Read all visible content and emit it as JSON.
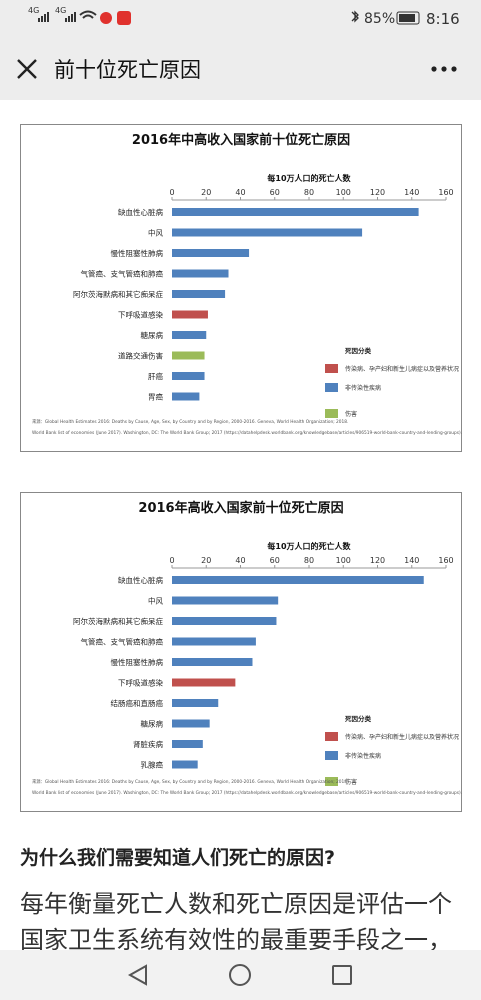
{
  "status_bar": {
    "network_1": "4G",
    "network_2": "4G",
    "battery": "85%",
    "time": "8:16"
  },
  "header": {
    "title": "前十位死亡原因"
  },
  "chart_data": [
    {
      "type": "bar",
      "orientation": "horizontal",
      "title": "2016年中高收入国家前十位死亡原因",
      "x_label": "每10万人口的死亡人数",
      "categories": [
        "缺血性心脏病",
        "中风",
        "慢性阻塞性肺病",
        "气管癌、支气管癌和肺癌",
        "阿尔茨海默病和其它痴呆症",
        "下呼吸道感染",
        "糖尿病",
        "道路交通伤害",
        "肝癌",
        "胃癌"
      ],
      "series": [
        {
          "name": "传染病、孕产妇和新生儿病症以及营养状况",
          "color": "#c0504d",
          "values": [
            null,
            null,
            null,
            null,
            null,
            21,
            null,
            null,
            null,
            null
          ]
        },
        {
          "name": "非传染性疾病",
          "color": "#4f81bd",
          "values": [
            144,
            111,
            45,
            33,
            31,
            null,
            20,
            null,
            19,
            16
          ]
        },
        {
          "name": "伤害",
          "color": "#9bbb59",
          "values": [
            null,
            null,
            null,
            null,
            null,
            null,
            null,
            19,
            null,
            null
          ]
        }
      ],
      "xlim": [
        0,
        160
      ],
      "xticks": [
        0,
        20,
        40,
        60,
        80,
        100,
        120,
        140,
        160
      ],
      "legend_title": "死因分类",
      "legend": "lower-right",
      "source": [
        "来源：Global Health Estimates 2016: Deaths by Cause, Age, Sex, by Country and by Region, 2000-2016. Geneva, World Health Organization; 2018.",
        "World Bank list of economies (June 2017). Washington, DC: The World Bank Group; 2017 (https://datahelpdesk.worldbank.org/knowledgebase/articles/906519-world-bank-country-and-lending-groups)."
      ]
    },
    {
      "type": "bar",
      "orientation": "horizontal",
      "title": "2016年高收入国家前十位死亡原因",
      "x_label": "每10万人口的死亡人数",
      "categories": [
        "缺血性心脏病",
        "中风",
        "阿尔茨海默病和其它痴呆症",
        "气管癌、支气管癌和肺癌",
        "慢性阻塞性肺病",
        "下呼吸道感染",
        "结肠癌和直肠癌",
        "糖尿病",
        "肾脏疾病",
        "乳腺癌"
      ],
      "series": [
        {
          "name": "传染病、孕产妇和新生儿病症以及营养状况",
          "color": "#c0504d",
          "values": [
            null,
            null,
            null,
            null,
            null,
            37,
            null,
            null,
            null,
            null
          ]
        },
        {
          "name": "非传染性疾病",
          "color": "#4f81bd",
          "values": [
            147,
            62,
            61,
            49,
            47,
            null,
            27,
            22,
            18,
            15
          ]
        },
        {
          "name": "伤害",
          "color": "#9bbb59",
          "values": [
            null,
            null,
            null,
            null,
            null,
            null,
            null,
            null,
            null,
            null
          ]
        }
      ],
      "xlim": [
        0,
        160
      ],
      "xticks": [
        0,
        20,
        40,
        60,
        80,
        100,
        120,
        140,
        160
      ],
      "legend_title": "死因分类",
      "legend": "lower-right",
      "source": [
        "来源：Global Health Estimates 2016: Deaths by Cause, Age, Sex, by Country and by Region, 2000-2016. Geneva, World Health Organization; 2018.",
        "World Bank list of economies (June 2017). Washington, DC: The World Bank Group; 2017 (https://datahelpdesk.worldbank.org/knowledgebase/articles/906519-world-bank-country-and-lending-groups)."
      ]
    }
  ],
  "article": {
    "heading": "为什么我们需要知道人们死亡的原因?",
    "paragraph_lines": [
      "每年衡量死亡人数和死亡原因是评估一个",
      "国家卫生系统有效性的最重要手段之一，"
    ]
  }
}
